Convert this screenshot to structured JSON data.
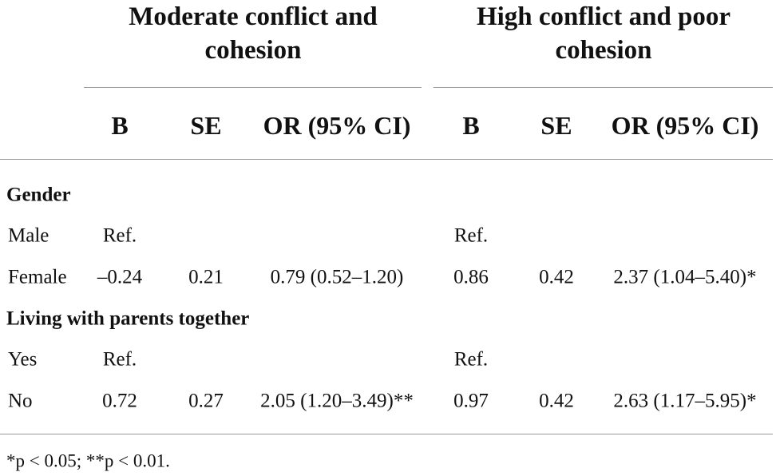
{
  "table": {
    "groups": [
      "Moderate conflict and cohesion",
      "High conflict and poor cohesion"
    ],
    "columns": [
      "B",
      "SE",
      "OR (95% CI)",
      "B",
      "SE",
      "OR (95% CI)"
    ],
    "sections": [
      {
        "title": "Gender",
        "rows": [
          {
            "label": "Male",
            "cells": [
              "Ref.",
              null,
              null,
              "Ref.",
              null,
              null
            ]
          },
          {
            "label": "Female",
            "cells": [
              "–0.24",
              "0.21",
              "0.79 (0.52–1.20)",
              "0.86",
              "0.42",
              "2.37 (1.04–5.40)*"
            ]
          }
        ]
      },
      {
        "title": "Living with parents together",
        "rows": [
          {
            "label": "Yes",
            "cells": [
              "Ref.",
              null,
              null,
              "Ref.",
              null,
              null
            ]
          },
          {
            "label": "No",
            "cells": [
              "0.72",
              "0.27",
              "2.05 (1.20–3.49)**",
              "0.97",
              "0.42",
              "2.63 (1.17–5.95)*"
            ]
          }
        ]
      }
    ],
    "footnote": "*p < 0.05; **p < 0.01."
  }
}
